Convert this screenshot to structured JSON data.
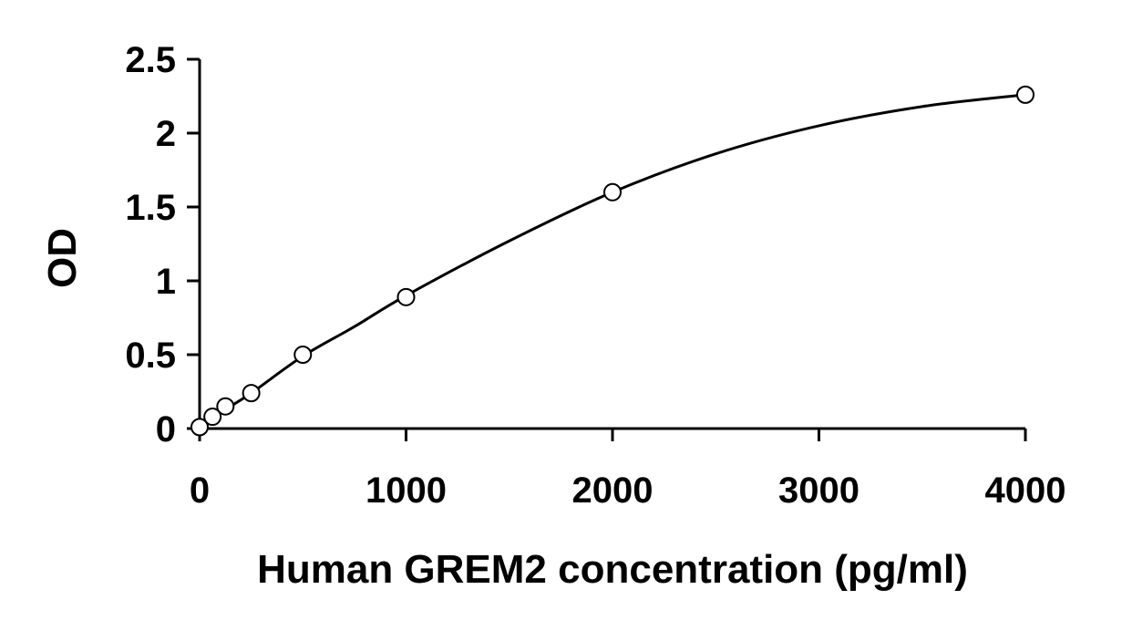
{
  "chart_data": {
    "type": "scatter",
    "title": "",
    "xlabel": "Human GREM2 concentration (pg/ml)",
    "ylabel": "OD",
    "xlim": [
      0,
      4000
    ],
    "ylim": [
      0,
      2.5
    ],
    "x_ticks": [
      0,
      1000,
      2000,
      3000,
      4000
    ],
    "x_tick_labels": [
      "0",
      "1000",
      "2000",
      "3000",
      "4000"
    ],
    "y_ticks": [
      0,
      0.5,
      1,
      1.5,
      2,
      2.5
    ],
    "y_tick_labels": [
      "0",
      "0.5",
      "1",
      "1.5",
      "2",
      "2.5"
    ],
    "grid": false,
    "legend": "none",
    "series": [
      {
        "marker": "open-circle",
        "x": [
          0,
          62.5,
          125,
          250,
          500,
          1000,
          2000,
          4000
        ],
        "y": [
          0.01,
          0.08,
          0.15,
          0.24,
          0.5,
          0.89,
          1.6,
          2.26
        ]
      }
    ],
    "fit_line": {
      "type": "polynomial",
      "x": [
        0,
        62.5,
        125,
        250,
        500,
        750,
        1000,
        1500,
        2000,
        2500,
        3000,
        3500,
        4000
      ],
      "y": [
        0.02,
        0.075,
        0.13,
        0.24,
        0.49,
        0.69,
        0.9,
        1.27,
        1.6,
        1.86,
        2.05,
        2.18,
        2.26
      ]
    },
    "colors": {
      "line": "#000000",
      "marker_stroke": "#000000",
      "marker_fill": "#ffffff"
    }
  }
}
